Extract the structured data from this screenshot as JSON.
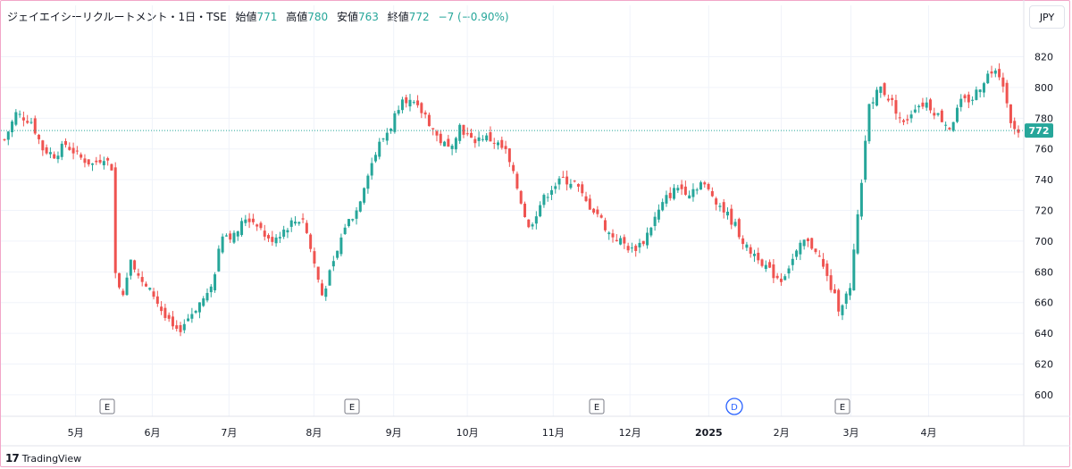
{
  "header": {
    "title": "ジェイエイシーリクルートメント・1日・TSE",
    "open_label": "始値",
    "open": "771",
    "high_label": "高値",
    "high": "780",
    "low_label": "安値",
    "low": "763",
    "close_label": "終値",
    "close": "772",
    "change": "−7 (−0.90%)",
    "currency": "JPY"
  },
  "footer": {
    "brand": "TradingView",
    "brand_logo": "17"
  },
  "colors": {
    "up": "#26a69a",
    "down": "#ef5350",
    "grid": "#f0f3fa",
    "price_tag": "#26a69a"
  },
  "chart_data": {
    "type": "candlestick",
    "ylim": [
      586,
      836
    ],
    "y_ticks": [
      "820",
      "800",
      "780",
      "760",
      "740",
      "720",
      "700",
      "680",
      "660",
      "640",
      "620",
      "600"
    ],
    "last_price": "772",
    "x_labels": [
      "5月",
      "6月",
      "7月",
      "8月",
      "9月",
      "10月",
      "11月",
      "12月",
      "2025",
      "2月",
      "3月",
      "4月"
    ],
    "events": [
      {
        "label": "E",
        "near": "5月"
      },
      {
        "label": "E",
        "near": "8月"
      },
      {
        "label": "E",
        "near": "11月"
      },
      {
        "label": "D",
        "near": "2025"
      },
      {
        "label": "E",
        "near": "2月"
      }
    ],
    "control_points": [
      [
        0,
        766
      ],
      [
        3,
        783
      ],
      [
        7,
        778
      ],
      [
        10,
        760
      ],
      [
        13,
        756
      ],
      [
        16,
        763
      ],
      [
        20,
        754
      ],
      [
        23,
        750
      ],
      [
        26,
        755
      ],
      [
        28,
        748
      ],
      [
        29,
        679
      ],
      [
        31,
        665
      ],
      [
        33,
        690
      ],
      [
        36,
        672
      ],
      [
        39,
        665
      ],
      [
        42,
        650
      ],
      [
        45,
        640
      ],
      [
        48,
        650
      ],
      [
        51,
        660
      ],
      [
        54,
        668
      ],
      [
        57,
        705
      ],
      [
        60,
        703
      ],
      [
        63,
        715
      ],
      [
        66,
        712
      ],
      [
        69,
        700
      ],
      [
        72,
        705
      ],
      [
        75,
        712
      ],
      [
        78,
        715
      ],
      [
        81,
        685
      ],
      [
        83,
        665
      ],
      [
        86,
        685
      ],
      [
        89,
        710
      ],
      [
        92,
        720
      ],
      [
        95,
        745
      ],
      [
        98,
        763
      ],
      [
        101,
        775
      ],
      [
        104,
        795
      ],
      [
        107,
        788
      ],
      [
        110,
        782
      ],
      [
        113,
        768
      ],
      [
        116,
        760
      ],
      [
        119,
        775
      ],
      [
        122,
        765
      ],
      [
        125,
        768
      ],
      [
        128,
        765
      ],
      [
        131,
        758
      ],
      [
        134,
        735
      ],
      [
        137,
        708
      ],
      [
        140,
        724
      ],
      [
        143,
        735
      ],
      [
        146,
        740
      ],
      [
        149,
        738
      ],
      [
        152,
        725
      ],
      [
        155,
        718
      ],
      [
        158,
        705
      ],
      [
        161,
        700
      ],
      [
        164,
        694
      ],
      [
        167,
        700
      ],
      [
        170,
        715
      ],
      [
        173,
        728
      ],
      [
        176,
        735
      ],
      [
        179,
        732
      ],
      [
        182,
        738
      ],
      [
        185,
        730
      ],
      [
        188,
        720
      ],
      [
        191,
        710
      ],
      [
        194,
        695
      ],
      [
        197,
        690
      ],
      [
        200,
        680
      ],
      [
        203,
        675
      ],
      [
        206,
        688
      ],
      [
        209,
        700
      ],
      [
        212,
        695
      ],
      [
        215,
        676
      ],
      [
        218,
        657
      ],
      [
        221,
        668
      ],
      [
        224,
        740
      ],
      [
        226,
        790
      ],
      [
        229,
        800
      ],
      [
        232,
        790
      ],
      [
        235,
        776
      ],
      [
        238,
        788
      ],
      [
        241,
        790
      ],
      [
        244,
        782
      ],
      [
        247,
        774
      ],
      [
        250,
        790
      ],
      [
        253,
        793
      ],
      [
        256,
        805
      ],
      [
        259,
        814
      ],
      [
        261,
        803
      ],
      [
        263,
        775
      ],
      [
        265,
        772
      ]
    ],
    "rendering": "candlestick OHLC series (~266 daily sessions) traced from the closing-price path above"
  }
}
